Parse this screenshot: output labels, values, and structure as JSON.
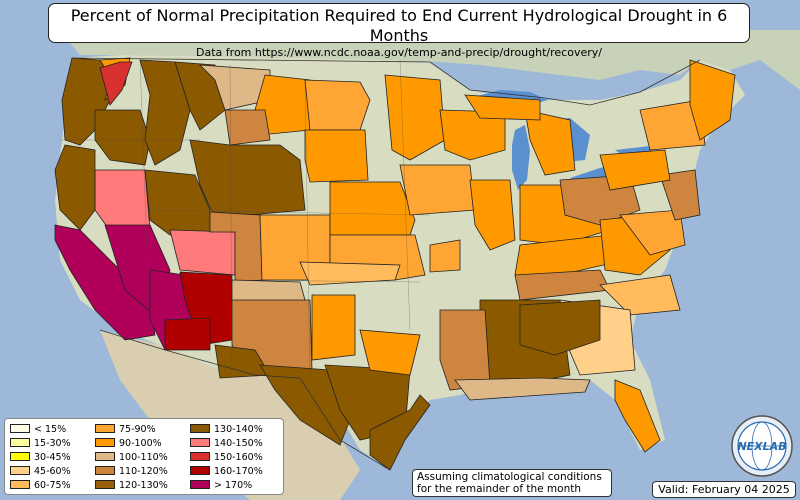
{
  "title": "Percent of Normal Precipitation Required to End Current Hydrological Drought in 6 Months",
  "subtitle": "Data from https://www.ncdc.noaa.gov/temp-and-precip/drought/recovery/",
  "legend": [
    {
      "label": "< 15%",
      "color": "#ffffe8"
    },
    {
      "label": "15-30%",
      "color": "#ffffa0"
    },
    {
      "label": "30-45%",
      "color": "#ffff00"
    },
    {
      "label": "45-60%",
      "color": "#ffd08a"
    },
    {
      "label": "60-75%",
      "color": "#ffbb5c"
    },
    {
      "label": "75-90%",
      "color": "#ffa533"
    },
    {
      "label": "90-100%",
      "color": "#ff9900"
    },
    {
      "label": "100-110%",
      "color": "#deb887"
    },
    {
      "label": "110-120%",
      "color": "#cd853f"
    },
    {
      "label": "120-130%",
      "color": "#9a5e06"
    },
    {
      "label": "130-140%",
      "color": "#8b5a00"
    },
    {
      "label": "140-150%",
      "color": "#ff7b7b"
    },
    {
      "label": "150-160%",
      "color": "#d93030"
    },
    {
      "label": "160-170%",
      "color": "#b00000"
    },
    {
      "label": "> 170%",
      "color": "#b0005a"
    }
  ],
  "note_line1": "Assuming climatological conditions",
  "note_line2": "for the remainder of the month",
  "valid": "Valid: February 04 2025",
  "logo": {
    "text": "NEXLAB",
    "icon": "nexlab-globe-logo"
  },
  "colors": {
    "ocean": "#9db8d8",
    "land": "#d8dcc0",
    "canada": "#c8d2b8",
    "mexico": "#d9cfb0",
    "lakes": "#5a8fd0"
  }
}
